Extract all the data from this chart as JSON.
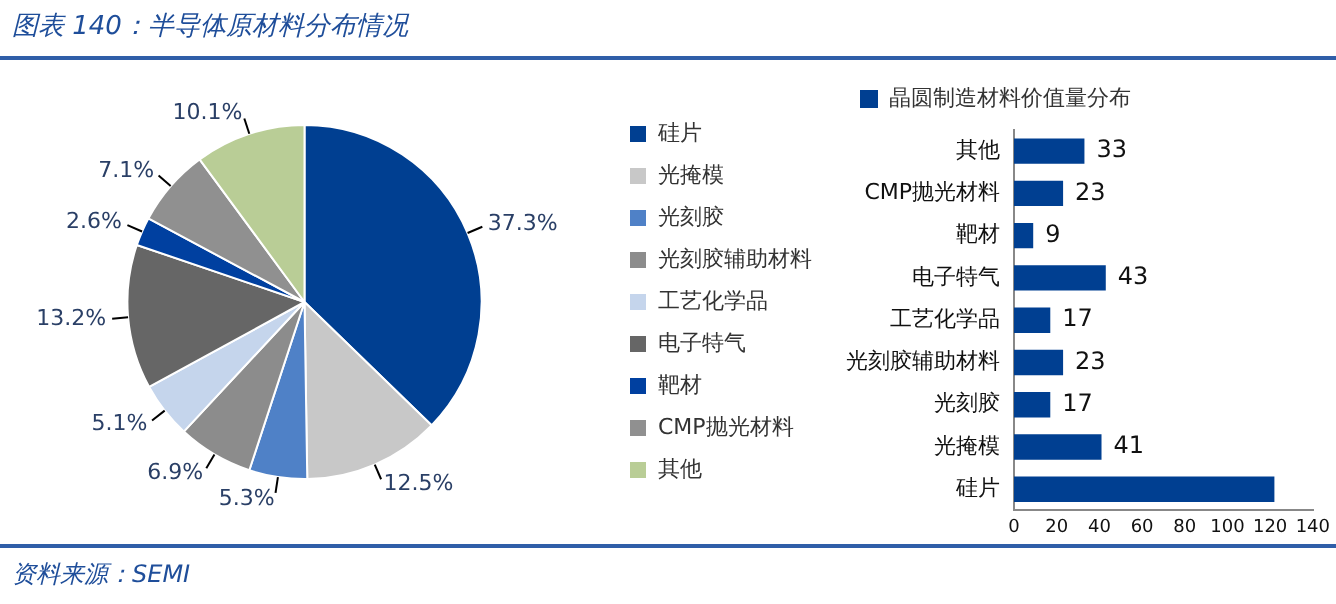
{
  "chart_data": [
    {
      "type": "pie",
      "title": "图表 140：半导体原材料分布情况",
      "categories": [
        "硅片",
        "光掩模",
        "光刻胶",
        "光刻胶辅助材料",
        "工艺化学品",
        "电子特气",
        "靶材",
        "CMP抛光材料",
        "其他"
      ],
      "values": [
        37.3,
        12.5,
        5.3,
        6.9,
        5.1,
        13.2,
        2.6,
        7.1,
        10.1
      ],
      "value_labels": [
        "37.3%",
        "12.5%",
        "5.3%",
        "6.9%",
        "5.1%",
        "13.2%",
        "2.6%",
        "7.1%",
        "10.1%"
      ],
      "colors": [
        "#003f91",
        "#c8c8c8",
        "#4f81c7",
        "#8c8c8c",
        "#c5d5ec",
        "#666666",
        "#0040a0",
        "#909090",
        "#b9cd96"
      ],
      "legend": "right",
      "annotations": [
        "资料来源：SEMI"
      ]
    },
    {
      "type": "bar",
      "orientation": "horizontal",
      "categories": [
        "其他",
        "CMP抛光材料",
        "靶材",
        "电子特气",
        "工艺化学品",
        "光刻胶辅助材料",
        "光刻胶",
        "光掩模",
        "硅片"
      ],
      "series": [
        {
          "name": "晶圆制造材料价值量分布",
          "color": "#003f91",
          "values": [
            33,
            23,
            9,
            43,
            17,
            23,
            17,
            41,
            122
          ],
          "value_labels": [
            "33",
            "23",
            "9",
            "43",
            "17",
            "23",
            "17",
            "41",
            null
          ]
        }
      ],
      "xlim": [
        0,
        140
      ],
      "xticks": [
        0,
        20,
        40,
        60,
        80,
        100,
        120,
        140
      ],
      "grid": false,
      "legend": "top"
    }
  ]
}
